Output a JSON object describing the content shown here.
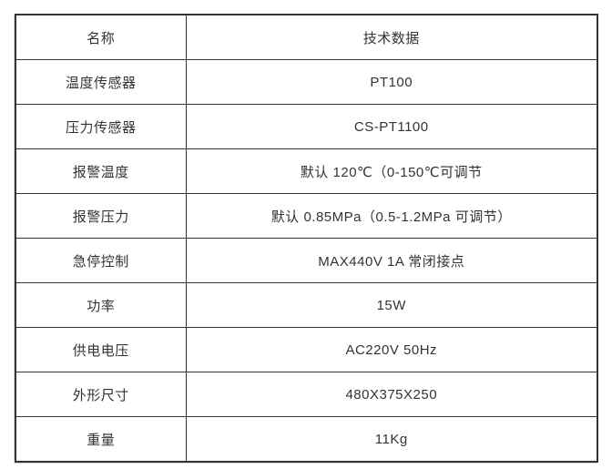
{
  "table": {
    "header": {
      "name_label": "名称",
      "data_label": "技术数据"
    },
    "rows": [
      {
        "label": "温度传感器",
        "value": "PT100"
      },
      {
        "label": "压力传感器",
        "value": "CS-PT1100"
      },
      {
        "label": "报警温度",
        "value": "默认 120℃（0-150℃可调节"
      },
      {
        "label": "报警压力",
        "value": "默认 0.85MPa（0.5-1.2MPa 可调节）"
      },
      {
        "label": "急停控制",
        "value": "MAX440V 1A 常闭接点"
      },
      {
        "label": "功率",
        "value": "15W"
      },
      {
        "label": "供电电压",
        "value": "AC220V 50Hz"
      },
      {
        "label": "外形尺寸",
        "value": "480X375X250"
      },
      {
        "label": "重量",
        "value": "11Kg"
      }
    ],
    "colors": {
      "border": "#333333",
      "text": "#333333",
      "background": "#ffffff"
    }
  }
}
